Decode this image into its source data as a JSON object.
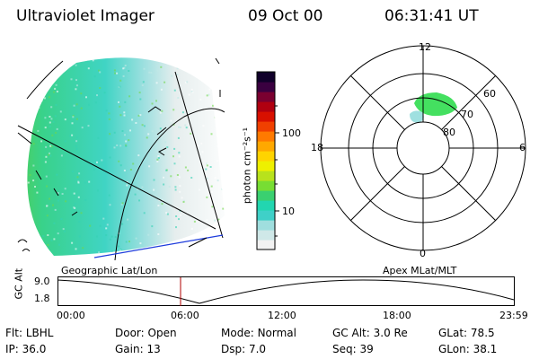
{
  "header": {
    "instrument": "Ultraviolet Imager",
    "date": "09 Oct 00",
    "time": "06:31:41 UT"
  },
  "colorbar": {
    "label": "photon cm⁻²s⁻¹",
    "ticks": [
      "100",
      "10"
    ],
    "colors": [
      "#f2f2f2",
      "#cfe8e8",
      "#9fdede",
      "#3fd0c8",
      "#22d6b0",
      "#3ad070",
      "#77dd33",
      "#b8e21c",
      "#eef000",
      "#ffd400",
      "#ffa800",
      "#ff7a00",
      "#f04000",
      "#d81000",
      "#b00010",
      "#7a0030",
      "#3a0040",
      "#10002a"
    ]
  },
  "polar": {
    "labels": {
      "top": "12",
      "bottom": "0",
      "left": "18",
      "right": "6"
    },
    "rings": [
      "60",
      "70",
      "80"
    ]
  },
  "plot": {
    "left_label": "Geographic Lat/Lon",
    "right_label": "Apex MLat/MLT",
    "y_label": "GC Alt",
    "y_ticks": [
      "9.0",
      "1.8"
    ],
    "x_ticks": [
      "00:00",
      "06:00",
      "12:00",
      "18:00",
      "23:59"
    ]
  },
  "footer": {
    "row1": [
      {
        "label": "Flt:",
        "value": "LBHL"
      },
      {
        "label": "Door:",
        "value": "Open"
      },
      {
        "label": "Mode:",
        "value": "Normal"
      },
      {
        "label": "GC Alt:",
        "value": "3.0 Re"
      },
      {
        "label": "GLat:",
        "value": "78.5"
      }
    ],
    "row2": [
      {
        "label": "IP:",
        "value": "36.0"
      },
      {
        "label": "Gain:",
        "value": "13"
      },
      {
        "label": "Dsp:",
        "value": "7.0"
      },
      {
        "label": "Seq:",
        "value": "39"
      },
      {
        "label": "GLon:",
        "value": "38.1"
      }
    ]
  }
}
